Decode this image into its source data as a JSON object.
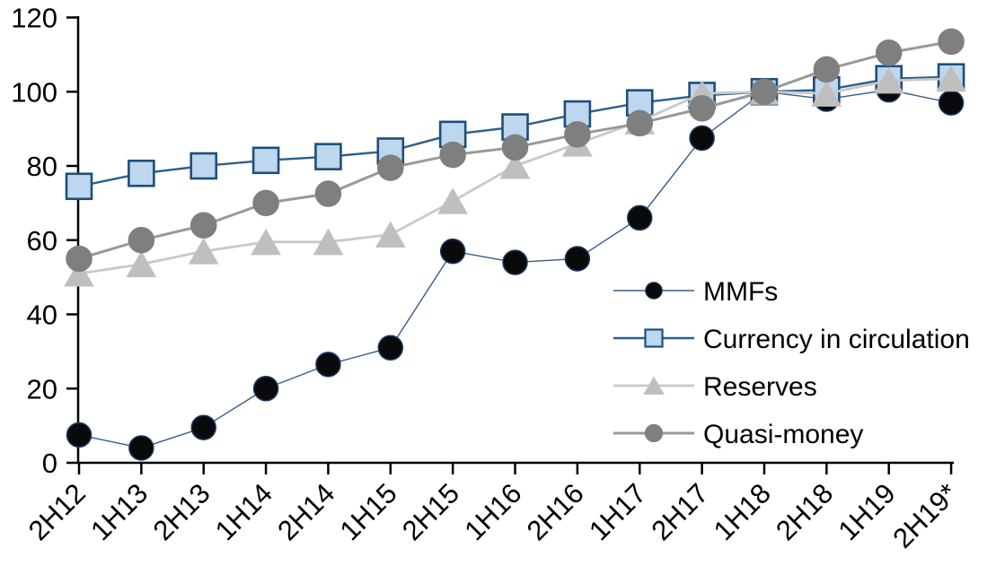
{
  "chart_data": {
    "type": "line",
    "title": "",
    "xlabel": "",
    "ylabel": "",
    "categories": [
      "2H12",
      "1H13",
      "2H13",
      "1H14",
      "2H14",
      "1H15",
      "2H15",
      "1H16",
      "2H16",
      "1H17",
      "2H17",
      "1H18",
      "2H18",
      "1H19",
      "2H19*"
    ],
    "series": [
      {
        "name": "MMFs",
        "marker": "circle",
        "marker_fill": "#0a0a0c",
        "marker_stroke": "#1f3864",
        "line_color": "#3a5a8c",
        "line_width": 1.4,
        "marker_size": 27,
        "values": [
          7.5,
          4,
          9.5,
          20,
          26.5,
          31,
          57,
          54,
          55,
          66,
          87.5,
          100,
          98,
          100.5,
          97
        ]
      },
      {
        "name": "Currency in circulation",
        "marker": "square",
        "marker_fill": "#bdd7ee",
        "marker_stroke": "#1f4e79",
        "line_color": "#2e5f8c",
        "line_width": 2.4,
        "marker_size": 28,
        "values": [
          74.5,
          78,
          80,
          81.5,
          82.5,
          84,
          88.5,
          90.5,
          94,
          97,
          99,
          100,
          100.5,
          103.5,
          104
        ]
      },
      {
        "name": "Reserves",
        "marker": "triangle",
        "marker_fill": "#bfbfbf",
        "marker_stroke": "#bfbfbf",
        "line_color": "#c9c9c9",
        "line_width": 2.8,
        "marker_size": 32,
        "values": [
          51,
          53.5,
          57,
          59.5,
          59.5,
          61.5,
          70.5,
          80,
          86,
          92,
          99.5,
          100,
          99.5,
          103,
          103.5
        ]
      },
      {
        "name": "Quasi-money",
        "marker": "circle",
        "marker_fill": "#7f7f7f",
        "marker_stroke": "#7f7f7f",
        "line_color": "#999999",
        "line_width": 3,
        "marker_size": 28,
        "values": [
          55,
          60,
          64,
          70,
          72.5,
          79.5,
          83,
          85,
          88.5,
          91.5,
          95.5,
          100,
          106,
          110.5,
          113.5
        ]
      }
    ],
    "ylim": [
      0,
      120
    ],
    "yticks": [
      0,
      20,
      40,
      60,
      80,
      100,
      120
    ],
    "grid": false,
    "legend_position": "inside-right",
    "axis_color": "#000000"
  }
}
